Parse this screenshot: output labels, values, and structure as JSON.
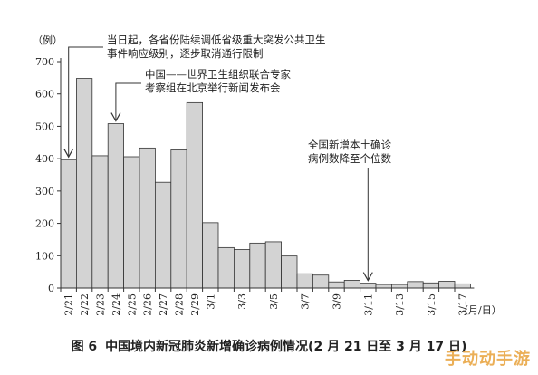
{
  "chart_data": {
    "type": "bar",
    "yunit": "（例）",
    "xunit": "（月/日）",
    "ylim": [
      0,
      700
    ],
    "yticks": [
      0,
      100,
      200,
      300,
      400,
      500,
      600,
      700
    ],
    "grid": false,
    "bar_color": "#d3d3d3",
    "categories": [
      "2/21",
      "2/22",
      "2/23",
      "2/24",
      "2/25",
      "2/26",
      "2/27",
      "2/28",
      "2/29",
      "3/1",
      "3/2",
      "3/3",
      "3/4",
      "3/5",
      "3/6",
      "3/7",
      "3/8",
      "3/9",
      "3/10",
      "3/11",
      "3/12",
      "3/13",
      "3/14",
      "3/15",
      "3/16",
      "3/17"
    ],
    "labeled_categories": [
      "2/21",
      "2/22",
      "2/23",
      "2/24",
      "2/25",
      "2/26",
      "2/27",
      "2/28",
      "2/29",
      "3/1",
      "3/3",
      "3/5",
      "3/7",
      "3/9",
      "3/11",
      "3/13",
      "3/15",
      "3/17"
    ],
    "values": [
      397,
      648,
      409,
      508,
      406,
      433,
      327,
      427,
      573,
      202,
      125,
      119,
      139,
      143,
      99,
      44,
      40,
      19,
      24,
      15,
      11,
      11,
      20,
      16,
      21,
      13
    ],
    "annotations": [
      {
        "lines": [
          "当日起，各省份陆续调低省级重大突发公共卫生",
          "事件响应级别，逐步取消通行限制"
        ],
        "category": "2/21"
      },
      {
        "lines": [
          "中国——世界卫生组织联合专家",
          "考察组在北京举行新闻发布会"
        ],
        "category": "2/24"
      },
      {
        "lines": [
          "全国新增本土确诊",
          "病例数降至个位数"
        ],
        "category": "3/11"
      }
    ]
  },
  "caption": {
    "figure": "图 6",
    "text": "中国境内新冠肺炎新增确诊病例情况(2 月 21 日至 3 月 17 日)"
  },
  "watermark": "手动动手游"
}
